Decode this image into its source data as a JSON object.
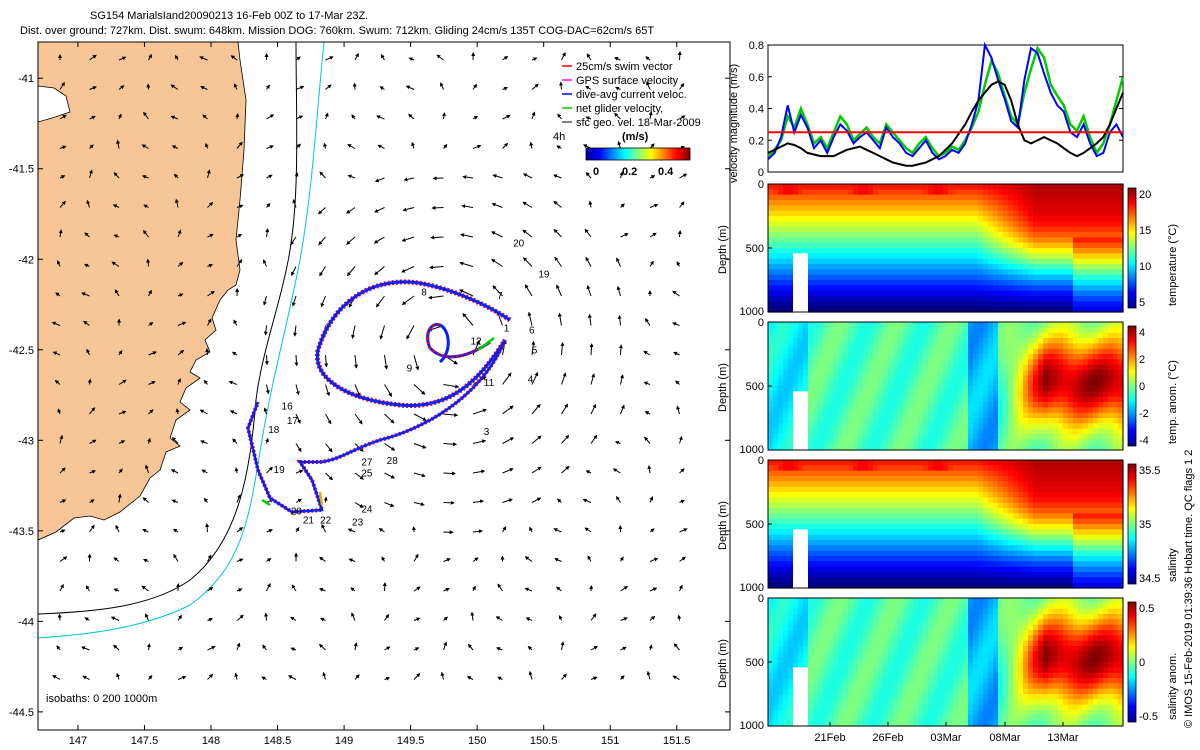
{
  "chart_data": [
    {
      "type": "scatter",
      "panel": "map",
      "title_line1": "SG154 MarialsIand20090213 16-Feb 00Z to 17-Mar 23Z.",
      "title_line2": "Dist. over ground: 727km. Dist. swum: 648km. Mission DOG: 760km. Swum: 712km. Gliding 24cm/s 135T COG-DAC=62cm/s 65T",
      "x_ticks": [
        "147",
        "147.5",
        "148",
        "148.5",
        "149",
        "149.5",
        "150",
        "150.5",
        "151",
        "151.5"
      ],
      "y_ticks": [
        "-41",
        "-41.5",
        "-42",
        "-42.5",
        "-43",
        "-43.5",
        "-44",
        "-44.5"
      ],
      "xlim": [
        146.7,
        151.9
      ],
      "ylim": [
        -44.6,
        -40.8
      ],
      "legend": [
        {
          "label": "25cm/s swim vector",
          "color": "#ff0000"
        },
        {
          "label": "GPS surface velocity",
          "color": "#ff00ff"
        },
        {
          "label": "dive-avg current veloc.",
          "color": "#0000ff"
        },
        {
          "label": "net glider velocity,",
          "color": "#00cc00"
        },
        {
          "label": "sfc geo. vel. 18-Mar-2009",
          "color": "#000000"
        }
      ],
      "legend_extra": "4h",
      "colorbar_label": "(m/s)",
      "colorbar_ticks": [
        "0",
        "0.2",
        "0.4"
      ],
      "isobath_label": "isobaths: 0   200   1000m",
      "track_labels": [
        {
          "label": "20",
          "lon": 150.27,
          "lat": -41.93
        },
        {
          "label": "19",
          "lon": 150.46,
          "lat": -42.1
        },
        {
          "label": "8",
          "lon": 149.58,
          "lat": -42.2
        },
        {
          "label": "7",
          "lon": 150.15,
          "lat": -42.22
        },
        {
          "label": "1",
          "lon": 150.2,
          "lat": -42.4
        },
        {
          "label": "6",
          "lon": 150.39,
          "lat": -42.41
        },
        {
          "label": "5",
          "lon": 150.41,
          "lat": -42.52
        },
        {
          "label": "12",
          "lon": 149.95,
          "lat": -42.47
        },
        {
          "label": "9",
          "lon": 149.47,
          "lat": -42.62
        },
        {
          "label": "11",
          "lon": 150.05,
          "lat": -42.7
        },
        {
          "label": "4",
          "lon": 150.38,
          "lat": -42.68
        },
        {
          "label": "3",
          "lon": 150.05,
          "lat": -42.97
        },
        {
          "label": "16",
          "lon": 148.53,
          "lat": -42.83
        },
        {
          "label": "17",
          "lon": 148.57,
          "lat": -42.91
        },
        {
          "label": "18",
          "lon": 148.43,
          "lat": -42.96
        },
        {
          "label": "28",
          "lon": 149.32,
          "lat": -43.13
        },
        {
          "label": "27",
          "lon": 149.13,
          "lat": -43.14
        },
        {
          "label": "25",
          "lon": 149.13,
          "lat": -43.2
        },
        {
          "label": "19",
          "lon": 148.47,
          "lat": -43.18
        },
        {
          "label": "20",
          "lon": 148.6,
          "lat": -43.41
        },
        {
          "label": "24",
          "lon": 149.13,
          "lat": -43.4
        },
        {
          "label": "21",
          "lon": 148.69,
          "lat": -43.46
        },
        {
          "label": "22",
          "lon": 148.82,
          "lat": -43.46
        },
        {
          "label": "23",
          "lon": 149.06,
          "lat": -43.47
        }
      ]
    },
    {
      "type": "line",
      "panel": "velocity",
      "ylabel": "velocity magnitude (m/s)",
      "y_ticks": [
        "0",
        "0.2",
        "0.4",
        "0.6",
        "0.8"
      ],
      "ylim": [
        0,
        0.8
      ],
      "xlim": [
        0,
        30
      ],
      "threshold": 0.25,
      "series": [
        {
          "color": "#00cc00",
          "values": [
            0.1,
            0.14,
            0.2,
            0.35,
            0.28,
            0.4,
            0.3,
            0.18,
            0.22,
            0.15,
            0.25,
            0.35,
            0.3,
            0.2,
            0.24,
            0.28,
            0.22,
            0.18,
            0.3,
            0.25,
            0.2,
            0.15,
            0.12,
            0.18,
            0.22,
            0.15,
            0.1,
            0.12,
            0.16,
            0.14,
            0.2,
            0.28,
            0.38,
            0.55,
            0.7,
            0.62,
            0.48,
            0.35,
            0.3,
            0.5,
            0.65,
            0.78,
            0.72,
            0.55,
            0.48,
            0.42,
            0.3,
            0.26,
            0.35,
            0.22,
            0.12,
            0.18,
            0.3,
            0.45,
            0.6
          ]
        },
        {
          "color": "#0000ff",
          "values": [
            0.08,
            0.12,
            0.22,
            0.42,
            0.25,
            0.36,
            0.28,
            0.15,
            0.2,
            0.12,
            0.22,
            0.3,
            0.26,
            0.18,
            0.22,
            0.25,
            0.2,
            0.15,
            0.28,
            0.22,
            0.18,
            0.12,
            0.1,
            0.15,
            0.2,
            0.12,
            0.08,
            0.1,
            0.14,
            0.12,
            0.18,
            0.3,
            0.45,
            0.8,
            0.72,
            0.58,
            0.46,
            0.32,
            0.28,
            0.58,
            0.78,
            0.75,
            0.62,
            0.5,
            0.42,
            0.38,
            0.25,
            0.22,
            0.3,
            0.18,
            0.1,
            0.12,
            0.25,
            0.3,
            0.22
          ]
        },
        {
          "color": "#000000",
          "values": [
            0.12,
            0.14,
            0.16,
            0.18,
            0.17,
            0.15,
            0.12,
            0.11,
            0.1,
            0.1,
            0.1,
            0.12,
            0.14,
            0.15,
            0.16,
            0.14,
            0.12,
            0.1,
            0.08,
            0.06,
            0.05,
            0.04,
            0.04,
            0.05,
            0.06,
            0.08,
            0.1,
            0.14,
            0.18,
            0.24,
            0.3,
            0.38,
            0.45,
            0.5,
            0.55,
            0.57,
            0.55,
            0.45,
            0.3,
            0.2,
            0.18,
            0.2,
            0.22,
            0.2,
            0.18,
            0.15,
            0.12,
            0.1,
            0.12,
            0.15,
            0.18,
            0.22,
            0.3,
            0.4,
            0.5
          ]
        },
        {
          "color": "#ff0000",
          "values": [
            0.25,
            0.25
          ]
        }
      ]
    },
    {
      "type": "heatmap",
      "panel": "temperature",
      "ylabel": "Depth (m)",
      "y_ticks": [
        "0",
        "500",
        "1000"
      ],
      "ylim": [
        1000,
        0
      ],
      "colorbar_label": "temperature (°C)",
      "colorbar_ticks": [
        "20",
        "15",
        "10",
        "5"
      ]
    },
    {
      "type": "heatmap",
      "panel": "temp_anomaly",
      "ylabel": "Depth (m)",
      "y_ticks": [
        "0",
        "500",
        "1000"
      ],
      "ylim": [
        1000,
        0
      ],
      "colorbar_label": "temp. anom. (°C)",
      "colorbar_ticks": [
        "4",
        "2",
        "0",
        "-2",
        "-4"
      ]
    },
    {
      "type": "heatmap",
      "panel": "salinity",
      "ylabel": "Depth (m)",
      "y_ticks": [
        "0",
        "500",
        "1000"
      ],
      "ylim": [
        1000,
        0
      ],
      "colorbar_label": "salinity",
      "colorbar_ticks": [
        "35.5",
        "35",
        "34.5"
      ]
    },
    {
      "type": "heatmap",
      "panel": "salinity_anomaly",
      "ylabel": "Depth (m)",
      "y_ticks": [
        "0",
        "500",
        "1000"
      ],
      "ylim": [
        1000,
        0
      ],
      "colorbar_label": "salinity anom.",
      "colorbar_ticks": [
        "0.5",
        "0",
        "-0.5"
      ],
      "x_ticks": [
        "21Feb",
        "26Feb",
        "03Mar",
        "08Mar",
        "13Mar"
      ]
    }
  ],
  "side_credit": "© IMOS 15-Feb-2019 01:39:36 Hobart time. QC flags 1 2"
}
